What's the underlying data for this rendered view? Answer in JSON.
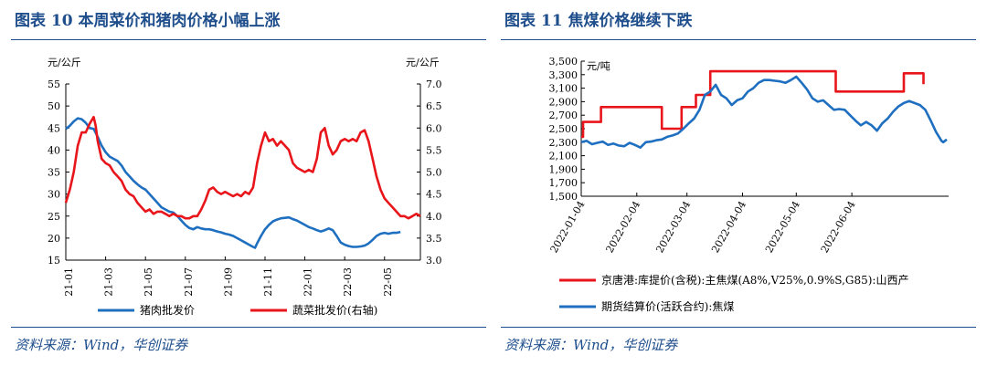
{
  "left": {
    "title": "图表 10   本周菜价和猪肉价格小幅上涨",
    "source": "资料来源：Wind，华创证券",
    "chart_data": {
      "type": "line",
      "left_unit": "元/公斤",
      "right_unit": "元/公斤",
      "ylim_left": [
        15,
        55
      ],
      "ylim_right": [
        3.0,
        7.0
      ],
      "yticks_left": [
        "55",
        "50",
        "45",
        "40",
        "35",
        "30",
        "25",
        "20",
        "15"
      ],
      "yticks_right": [
        "7.0",
        "6.5",
        "6.0",
        "5.5",
        "5.0",
        "4.5",
        "4.0",
        "3.5",
        "3.0"
      ],
      "xticks": [
        "21-01",
        "21-03",
        "21-05",
        "21-07",
        "21-09",
        "21-11",
        "22-01",
        "22-03",
        "22-05"
      ],
      "series": [
        {
          "name": "猪肉批发价",
          "axis": "left",
          "color": "#1f6fc1",
          "values": [
            [
              0,
              44.8
            ],
            [
              0.2,
              45.5
            ],
            [
              0.4,
              46.5
            ],
            [
              0.6,
              47.2
            ],
            [
              0.8,
              47.0
            ],
            [
              1.0,
              46.2
            ],
            [
              1.2,
              45.0
            ],
            [
              1.4,
              44.8
            ],
            [
              1.6,
              43.0
            ],
            [
              1.8,
              41.0
            ],
            [
              2.0,
              39.5
            ],
            [
              2.2,
              38.5
            ],
            [
              2.4,
              38.0
            ],
            [
              2.6,
              37.5
            ],
            [
              2.8,
              36.5
            ],
            [
              3.0,
              35.0
            ],
            [
              3.2,
              34.0
            ],
            [
              3.4,
              33.0
            ],
            [
              3.6,
              32.2
            ],
            [
              3.8,
              31.5
            ],
            [
              4.0,
              31.0
            ],
            [
              4.2,
              30.0
            ],
            [
              4.4,
              29.0
            ],
            [
              4.6,
              28.0
            ],
            [
              4.8,
              27.0
            ],
            [
              5.0,
              26.5
            ],
            [
              5.2,
              26.0
            ],
            [
              5.4,
              25.8
            ],
            [
              5.6,
              25.0
            ],
            [
              5.8,
              24.0
            ],
            [
              6.0,
              23.0
            ],
            [
              6.2,
              22.3
            ],
            [
              6.4,
              22.0
            ],
            [
              6.6,
              22.5
            ],
            [
              6.8,
              22.2
            ],
            [
              7.0,
              22.0
            ],
            [
              7.2,
              22.0
            ],
            [
              7.4,
              21.8
            ],
            [
              7.6,
              21.5
            ],
            [
              7.8,
              21.3
            ],
            [
              8.0,
              21.0
            ],
            [
              8.2,
              20.8
            ],
            [
              8.4,
              20.5
            ],
            [
              8.6,
              20.0
            ],
            [
              8.8,
              19.5
            ],
            [
              9.0,
              19.0
            ],
            [
              9.2,
              18.5
            ],
            [
              9.4,
              18.0
            ],
            [
              9.5,
              17.8
            ],
            [
              9.6,
              18.8
            ],
            [
              9.8,
              20.5
            ],
            [
              10.0,
              22.0
            ],
            [
              10.2,
              23.0
            ],
            [
              10.4,
              23.8
            ],
            [
              10.6,
              24.2
            ],
            [
              10.8,
              24.5
            ],
            [
              11.0,
              24.6
            ],
            [
              11.2,
              24.7
            ],
            [
              11.4,
              24.3
            ],
            [
              11.6,
              24.0
            ],
            [
              11.8,
              23.5
            ],
            [
              12.0,
              23.0
            ],
            [
              12.2,
              22.5
            ],
            [
              12.4,
              22.2
            ],
            [
              12.6,
              21.8
            ],
            [
              12.8,
              21.5
            ],
            [
              13.0,
              21.8
            ],
            [
              13.2,
              22.2
            ],
            [
              13.4,
              21.8
            ],
            [
              13.6,
              20.5
            ],
            [
              13.8,
              19.0
            ],
            [
              14.0,
              18.5
            ],
            [
              14.2,
              18.2
            ],
            [
              14.4,
              18.0
            ],
            [
              14.6,
              18.0
            ],
            [
              14.8,
              18.1
            ],
            [
              15.0,
              18.3
            ],
            [
              15.2,
              18.8
            ],
            [
              15.4,
              19.6
            ],
            [
              15.6,
              20.5
            ],
            [
              15.8,
              21.0
            ],
            [
              16.0,
              21.2
            ],
            [
              16.2,
              21.0
            ],
            [
              16.4,
              21.2
            ],
            [
              16.6,
              21.2
            ],
            [
              16.8,
              21.4
            ]
          ]
        },
        {
          "name": "蔬菜批发价(右轴)",
          "axis": "right",
          "color": "#e8151b",
          "values": [
            [
              0,
              4.3
            ],
            [
              0.2,
              4.6
            ],
            [
              0.4,
              5.0
            ],
            [
              0.6,
              5.6
            ],
            [
              0.8,
              5.9
            ],
            [
              1.0,
              5.9
            ],
            [
              1.2,
              6.1
            ],
            [
              1.4,
              6.25
            ],
            [
              1.5,
              6.05
            ],
            [
              1.6,
              5.7
            ],
            [
              1.8,
              5.3
            ],
            [
              2.0,
              5.2
            ],
            [
              2.2,
              5.15
            ],
            [
              2.4,
              5.0
            ],
            [
              2.6,
              4.9
            ],
            [
              2.8,
              4.8
            ],
            [
              3.0,
              4.6
            ],
            [
              3.2,
              4.5
            ],
            [
              3.4,
              4.45
            ],
            [
              3.6,
              4.3
            ],
            [
              3.8,
              4.2
            ],
            [
              4.0,
              4.1
            ],
            [
              4.2,
              4.15
            ],
            [
              4.4,
              4.05
            ],
            [
              4.6,
              4.1
            ],
            [
              4.8,
              4.1
            ],
            [
              5.0,
              4.05
            ],
            [
              5.2,
              4.0
            ],
            [
              5.4,
              4.05
            ],
            [
              5.6,
              4.0
            ],
            [
              5.8,
              4.0
            ],
            [
              6.0,
              3.95
            ],
            [
              6.2,
              3.95
            ],
            [
              6.4,
              4.0
            ],
            [
              6.6,
              4.0
            ],
            [
              6.8,
              4.15
            ],
            [
              7.0,
              4.35
            ],
            [
              7.2,
              4.6
            ],
            [
              7.4,
              4.65
            ],
            [
              7.6,
              4.55
            ],
            [
              7.8,
              4.5
            ],
            [
              8.0,
              4.55
            ],
            [
              8.2,
              4.5
            ],
            [
              8.4,
              4.45
            ],
            [
              8.6,
              4.5
            ],
            [
              8.8,
              4.45
            ],
            [
              9.0,
              4.55
            ],
            [
              9.2,
              4.5
            ],
            [
              9.4,
              4.65
            ],
            [
              9.6,
              5.2
            ],
            [
              9.8,
              5.6
            ],
            [
              10.0,
              5.9
            ],
            [
              10.2,
              5.7
            ],
            [
              10.4,
              5.75
            ],
            [
              10.6,
              5.6
            ],
            [
              10.8,
              5.7
            ],
            [
              11.0,
              5.6
            ],
            [
              11.2,
              5.5
            ],
            [
              11.4,
              5.2
            ],
            [
              11.6,
              5.1
            ],
            [
              11.8,
              5.05
            ],
            [
              12.0,
              5.0
            ],
            [
              12.2,
              5.05
            ],
            [
              12.4,
              5.0
            ],
            [
              12.6,
              5.3
            ],
            [
              12.8,
              5.9
            ],
            [
              13.0,
              6.0
            ],
            [
              13.2,
              5.6
            ],
            [
              13.4,
              5.4
            ],
            [
              13.6,
              5.5
            ],
            [
              13.8,
              5.7
            ],
            [
              14.0,
              5.75
            ],
            [
              14.2,
              5.7
            ],
            [
              14.4,
              5.75
            ],
            [
              14.6,
              5.7
            ],
            [
              14.8,
              5.9
            ],
            [
              15.0,
              5.95
            ],
            [
              15.2,
              5.7
            ],
            [
              15.4,
              5.3
            ],
            [
              15.6,
              4.9
            ],
            [
              15.8,
              4.6
            ],
            [
              16.0,
              4.4
            ],
            [
              16.2,
              4.3
            ],
            [
              16.4,
              4.2
            ],
            [
              16.6,
              4.1
            ],
            [
              16.8,
              4.0
            ],
            [
              17.0,
              4.0
            ],
            [
              17.2,
              3.95
            ],
            [
              17.4,
              4.0
            ],
            [
              17.6,
              4.05
            ],
            [
              17.8,
              4.0
            ]
          ]
        }
      ],
      "xmax": 17.8
    }
  },
  "right": {
    "title": "图表 11   焦煤价格继续下跌",
    "source": "资料来源：Wind，华创证券",
    "chart_data": {
      "type": "line",
      "unit": "元/吨",
      "ylim": [
        1500,
        3500
      ],
      "yticks": [
        "3,500",
        "3,300",
        "3,100",
        "2,900",
        "2,700",
        "2,500",
        "2,300",
        "2,100",
        "1,900",
        "1,700",
        "1,500"
      ],
      "xticks": [
        "2022-01-04",
        "2022-02-04",
        "2022-03-04",
        "2022-04-04",
        "2022-05-04",
        "2022-06-04"
      ],
      "series": [
        {
          "name": "京唐港:库提价(含税):主焦煤(A8%,V25%,0.9%S,G85):山西产",
          "color": "#e8151b",
          "step": true,
          "values": [
            [
              0,
              2380
            ],
            [
              1,
              2600
            ],
            [
              10,
              2600
            ],
            [
              11,
              2820
            ],
            [
              44,
              2820
            ],
            [
              45,
              2500
            ],
            [
              55,
              2500
            ],
            [
              56,
              2820
            ],
            [
              63,
              2820
            ],
            [
              64,
              3000
            ],
            [
              71,
              3000
            ],
            [
              72,
              3350
            ],
            [
              141,
              3350
            ],
            [
              142,
              3050
            ],
            [
              179,
              3050
            ],
            [
              180,
              3320
            ],
            [
              190,
              3320
            ],
            [
              191,
              3160
            ]
          ]
        },
        {
          "name": "期货结算价(活跃合约):焦煤",
          "color": "#1f6fc1",
          "step": false,
          "values": [
            [
              0,
              2300
            ],
            [
              3,
              2320
            ],
            [
              6,
              2270
            ],
            [
              9,
              2290
            ],
            [
              12,
              2310
            ],
            [
              15,
              2260
            ],
            [
              18,
              2280
            ],
            [
              21,
              2250
            ],
            [
              24,
              2240
            ],
            [
              27,
              2290
            ],
            [
              30,
              2260
            ],
            [
              33,
              2220
            ],
            [
              36,
              2300
            ],
            [
              39,
              2310
            ],
            [
              42,
              2330
            ],
            [
              45,
              2340
            ],
            [
              48,
              2380
            ],
            [
              51,
              2400
            ],
            [
              54,
              2430
            ],
            [
              57,
              2500
            ],
            [
              60,
              2580
            ],
            [
              63,
              2650
            ],
            [
              66,
              2780
            ],
            [
              69,
              3000
            ],
            [
              72,
              3050
            ],
            [
              75,
              3150
            ],
            [
              78,
              3000
            ],
            [
              81,
              2950
            ],
            [
              84,
              2850
            ],
            [
              87,
              2920
            ],
            [
              90,
              2950
            ],
            [
              93,
              3050
            ],
            [
              96,
              3100
            ],
            [
              99,
              3180
            ],
            [
              102,
              3220
            ],
            [
              105,
              3220
            ],
            [
              108,
              3210
            ],
            [
              111,
              3200
            ],
            [
              114,
              3180
            ],
            [
              117,
              3220
            ],
            [
              120,
              3270
            ],
            [
              123,
              3180
            ],
            [
              126,
              3080
            ],
            [
              129,
              2950
            ],
            [
              132,
              2900
            ],
            [
              135,
              2920
            ],
            [
              138,
              2850
            ],
            [
              141,
              2780
            ],
            [
              144,
              2790
            ],
            [
              147,
              2780
            ],
            [
              150,
              2700
            ],
            [
              153,
              2620
            ],
            [
              156,
              2550
            ],
            [
              159,
              2600
            ],
            [
              162,
              2550
            ],
            [
              165,
              2470
            ],
            [
              168,
              2580
            ],
            [
              171,
              2650
            ],
            [
              174,
              2750
            ],
            [
              177,
              2830
            ],
            [
              180,
              2880
            ],
            [
              183,
              2910
            ],
            [
              186,
              2880
            ],
            [
              189,
              2850
            ],
            [
              192,
              2780
            ],
            [
              195,
              2620
            ],
            [
              198,
              2450
            ],
            [
              201,
              2320
            ],
            [
              202,
              2300
            ],
            [
              204,
              2340
            ]
          ]
        }
      ],
      "xmax": 205
    }
  }
}
